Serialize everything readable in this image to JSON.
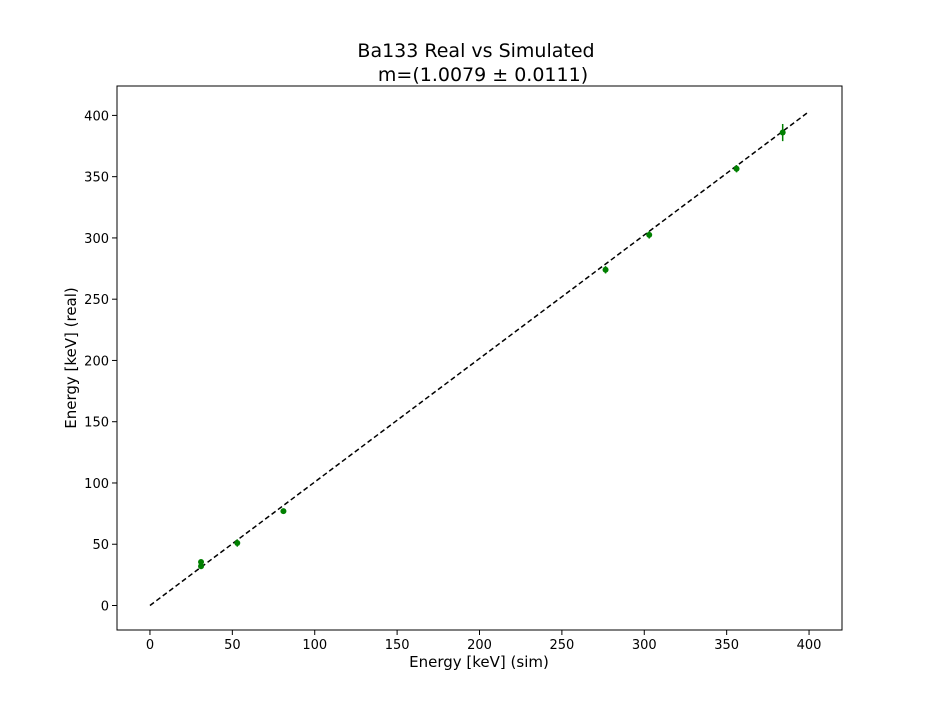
{
  "chart_data": {
    "type": "scatter",
    "title": "Ba133 Real vs Simulated",
    "subtitle": "m=(1.0079 ± 0.0111)",
    "xlabel": "Energy [keV] (sim)",
    "ylabel": "Energy [keV] (real)",
    "xlim": [
      -20,
      420
    ],
    "ylim": [
      -20,
      424
    ],
    "x_ticks": [
      0,
      50,
      100,
      150,
      200,
      250,
      300,
      350,
      400
    ],
    "y_ticks": [
      0,
      50,
      100,
      150,
      200,
      250,
      300,
      350,
      400
    ],
    "grid": false,
    "points": [
      {
        "x": 31,
        "y": 32,
        "yerr": 2
      },
      {
        "x": 31,
        "y": 35.5,
        "yerr": 2
      },
      {
        "x": 53,
        "y": 51,
        "yerr": 3
      },
      {
        "x": 81,
        "y": 77,
        "yerr": 2
      },
      {
        "x": 276.5,
        "y": 274,
        "yerr": 3
      },
      {
        "x": 303,
        "y": 302.5,
        "yerr": 3
      },
      {
        "x": 356,
        "y": 356.5,
        "yerr": 3
      },
      {
        "x": 384,
        "y": 386,
        "yerr": 7
      }
    ],
    "point_color": "#008000",
    "fit_line": {
      "x": [
        0,
        400
      ],
      "y": [
        0,
        403.16
      ],
      "color": "#000000",
      "style": "dashed"
    }
  }
}
